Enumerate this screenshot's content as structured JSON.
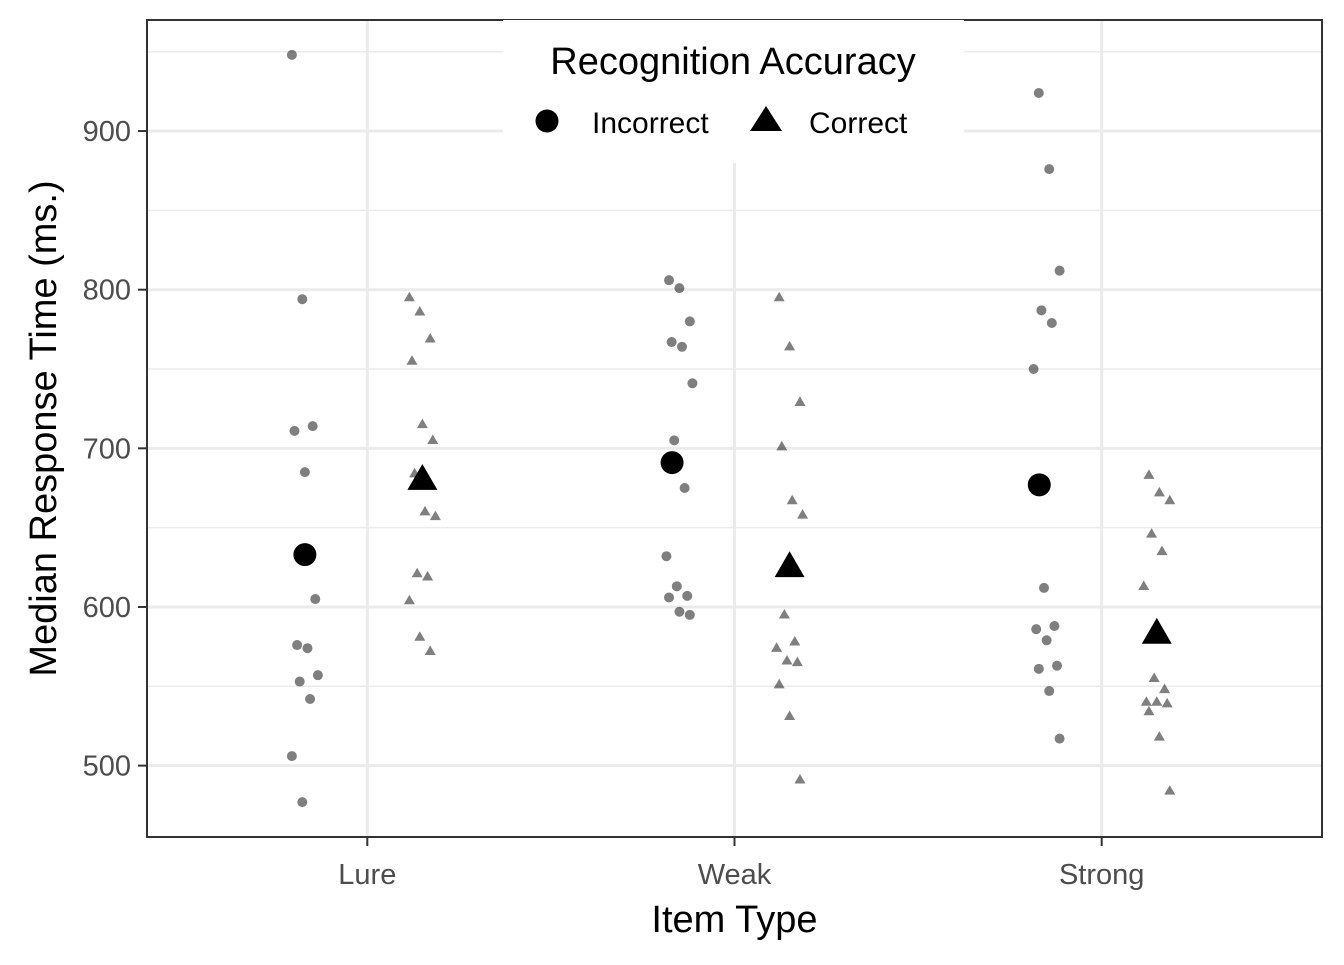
{
  "chart_data": {
    "type": "scatter",
    "xlabel": "Item Type",
    "ylabel": "Median Response Time (ms.)",
    "categories": [
      "Lure",
      "Weak",
      "Strong"
    ],
    "ylim": [
      455,
      970
    ],
    "yticks": [
      500,
      600,
      700,
      800,
      900
    ],
    "grid": true,
    "legend": {
      "title": "Recognition Accuracy",
      "position": "top-center",
      "entries": [
        {
          "name": "Incorrect",
          "shape": "circle"
        },
        {
          "name": "Correct",
          "shape": "triangle"
        }
      ]
    },
    "colors": {
      "points": "#000000",
      "grid": "#ebebeb",
      "panel_border": "#333333",
      "tick_text": "#4d4d4d"
    },
    "series": [
      {
        "name": "Incorrect",
        "shape": "circle",
        "means": [
          633,
          691,
          677
        ],
        "points": [
          {
            "category": "Lure",
            "offset": -0.17,
            "values": [
              948,
              794,
              714,
              711,
              685,
              605,
              576,
              574,
              557,
              553,
              542,
              506,
              477
            ]
          },
          {
            "category": "Weak",
            "offset": -0.15,
            "values": [
              806,
              801,
              780,
              767,
              764,
              741,
              705,
              675,
              632,
              613,
              607,
              606,
              597,
              595
            ]
          },
          {
            "category": "Strong",
            "offset": -0.15,
            "values": [
              924,
              876,
              812,
              787,
              779,
              750,
              612,
              588,
              586,
              579,
              563,
              561,
              547,
              517
            ]
          }
        ]
      },
      {
        "name": "Correct",
        "shape": "triangle",
        "means": [
          680,
          625,
          583
        ],
        "points": [
          {
            "category": "Lure",
            "offset": 0.15,
            "values": [
              795,
              786,
              769,
              755,
              715,
              705,
              684,
              660,
              657,
              621,
              619,
              604,
              581,
              572
            ]
          },
          {
            "category": "Weak",
            "offset": 0.15,
            "values": [
              795,
              764,
              729,
              701,
              667,
              658,
              595,
              578,
              574,
              566,
              565,
              551,
              531,
              491
            ]
          },
          {
            "category": "Strong",
            "offset": 0.15,
            "values": [
              683,
              672,
              667,
              646,
              635,
              613,
              555,
              548,
              540,
              540,
              539,
              534,
              518,
              484
            ]
          }
        ]
      }
    ]
  }
}
